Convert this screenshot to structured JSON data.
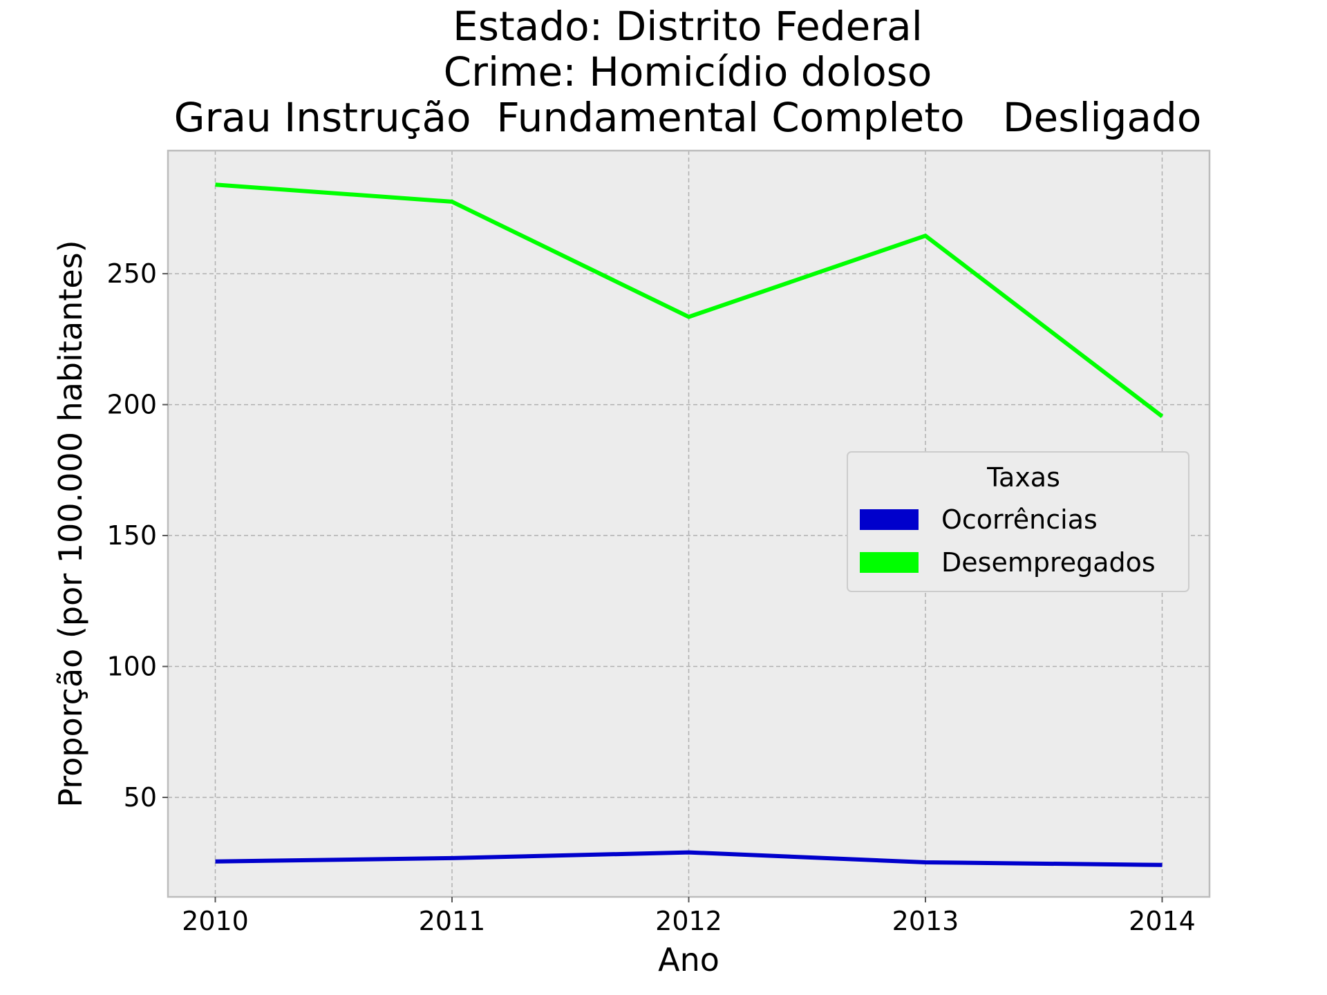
{
  "chart_data": {
    "type": "line",
    "title": [
      "Estado: Distrito Federal",
      "Crime: Homicídio doloso",
      "Grau Instrução  Fundamental Completo   Desligado"
    ],
    "xlabel": "Ano",
    "ylabel": "Proporção (por 100.000 habitantes)",
    "x": [
      2010,
      2011,
      2012,
      2013,
      2014
    ],
    "x_tick_labels": [
      "2010",
      "2011",
      "2012",
      "2013",
      "2014"
    ],
    "y_ticks": [
      50,
      100,
      150,
      200,
      250
    ],
    "y_tick_labels": [
      "50",
      "100",
      "150",
      "200",
      "250"
    ],
    "xlim": [
      2009.8,
      2014.2
    ],
    "ylim": [
      12,
      297
    ],
    "grid": true,
    "background": "#ececec",
    "series": [
      {
        "name": "Ocorrências",
        "color": "#0000cc",
        "values": [
          25.5,
          26.8,
          29.0,
          25.2,
          24.2
        ]
      },
      {
        "name": "Desempregados",
        "color": "#00ff00",
        "values": [
          284,
          277.5,
          233.5,
          264.5,
          195.5
        ]
      }
    ],
    "legend": {
      "title": "Taxas",
      "position": "center-right"
    }
  }
}
